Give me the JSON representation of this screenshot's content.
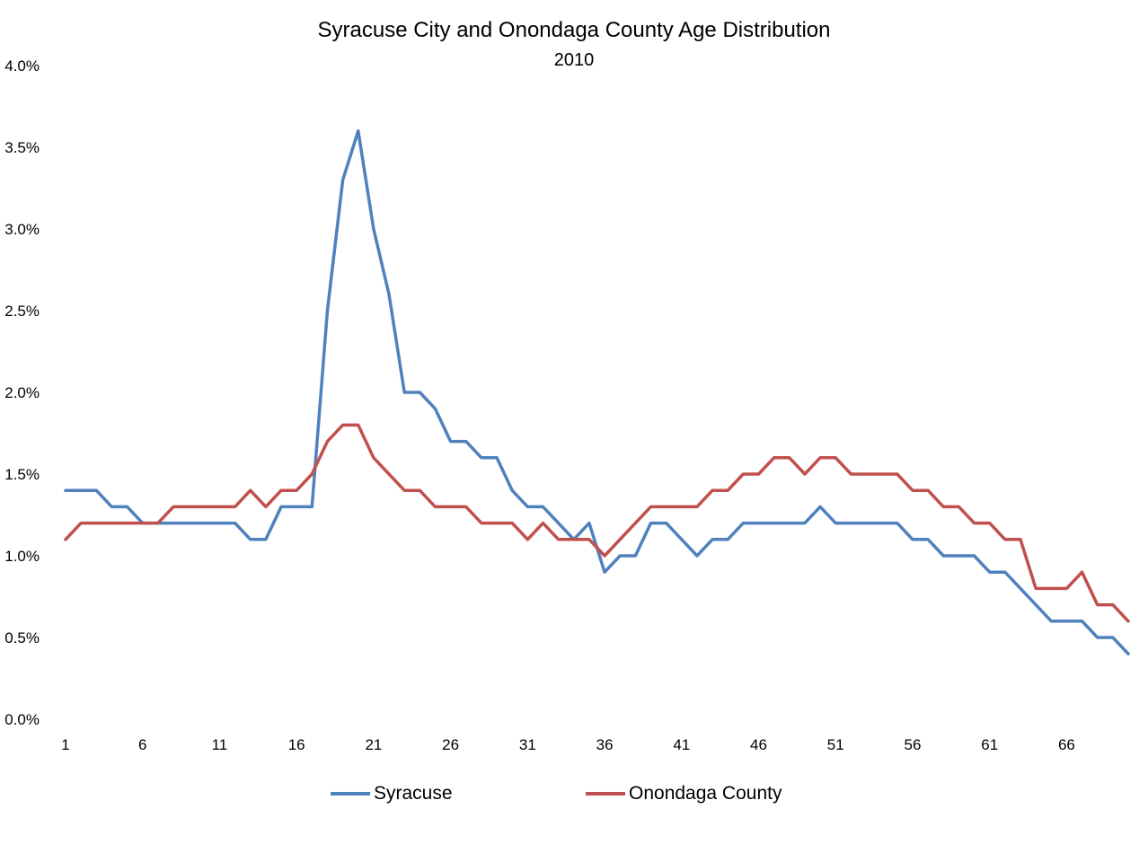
{
  "chart_data": {
    "type": "line",
    "title": "Syracuse City and Onondaga County Age Distribution",
    "subtitle": "2010",
    "xlabel": "",
    "ylabel": "",
    "ylim": [
      0,
      4
    ],
    "y_ticks": [
      "0.0%",
      "0.5%",
      "1.0%",
      "1.5%",
      "2.0%",
      "2.5%",
      "3.0%",
      "3.5%",
      "4.0%"
    ],
    "x_tick_labels": [
      "1",
      "6",
      "11",
      "16",
      "21",
      "26",
      "31",
      "36",
      "41",
      "46",
      "51",
      "56",
      "61",
      "66"
    ],
    "x_tick_values": [
      1,
      6,
      11,
      16,
      21,
      26,
      31,
      36,
      41,
      46,
      51,
      56,
      61,
      66
    ],
    "x_min": 1,
    "x_max": 70,
    "grid": false,
    "legend_position": "bottom",
    "series": [
      {
        "name": "Syracuse",
        "color": "#4F81BD",
        "values": [
          1.4,
          1.4,
          1.4,
          1.3,
          1.3,
          1.2,
          1.2,
          1.2,
          1.2,
          1.2,
          1.2,
          1.2,
          1.1,
          1.1,
          1.3,
          1.3,
          1.3,
          2.5,
          3.3,
          3.6,
          3.0,
          2.6,
          2.0,
          2.0,
          1.9,
          1.7,
          1.7,
          1.6,
          1.6,
          1.4,
          1.3,
          1.3,
          1.2,
          1.1,
          1.2,
          0.9,
          1.0,
          1.0,
          1.2,
          1.2,
          1.1,
          1.0,
          1.1,
          1.1,
          1.2,
          1.2,
          1.2,
          1.2,
          1.2,
          1.3,
          1.2,
          1.2,
          1.2,
          1.2,
          1.2,
          1.1,
          1.1,
          1.0,
          1.0,
          1.0,
          0.9,
          0.9,
          0.8,
          0.7,
          0.6,
          0.6,
          0.6,
          0.5,
          0.5,
          0.4
        ]
      },
      {
        "name": "Onondaga County",
        "color": "#C0504D",
        "values": [
          1.1,
          1.2,
          1.2,
          1.2,
          1.2,
          1.2,
          1.2,
          1.3,
          1.3,
          1.3,
          1.3,
          1.3,
          1.4,
          1.3,
          1.4,
          1.4,
          1.5,
          1.7,
          1.8,
          1.8,
          1.6,
          1.5,
          1.4,
          1.4,
          1.3,
          1.3,
          1.3,
          1.2,
          1.2,
          1.2,
          1.1,
          1.2,
          1.1,
          1.1,
          1.1,
          1.0,
          1.1,
          1.2,
          1.3,
          1.3,
          1.3,
          1.3,
          1.4,
          1.4,
          1.5,
          1.5,
          1.6,
          1.6,
          1.5,
          1.6,
          1.6,
          1.5,
          1.5,
          1.5,
          1.5,
          1.4,
          1.4,
          1.3,
          1.3,
          1.2,
          1.2,
          1.1,
          1.1,
          0.8,
          0.8,
          0.8,
          0.9,
          0.7,
          0.7,
          0.6
        ]
      }
    ]
  }
}
